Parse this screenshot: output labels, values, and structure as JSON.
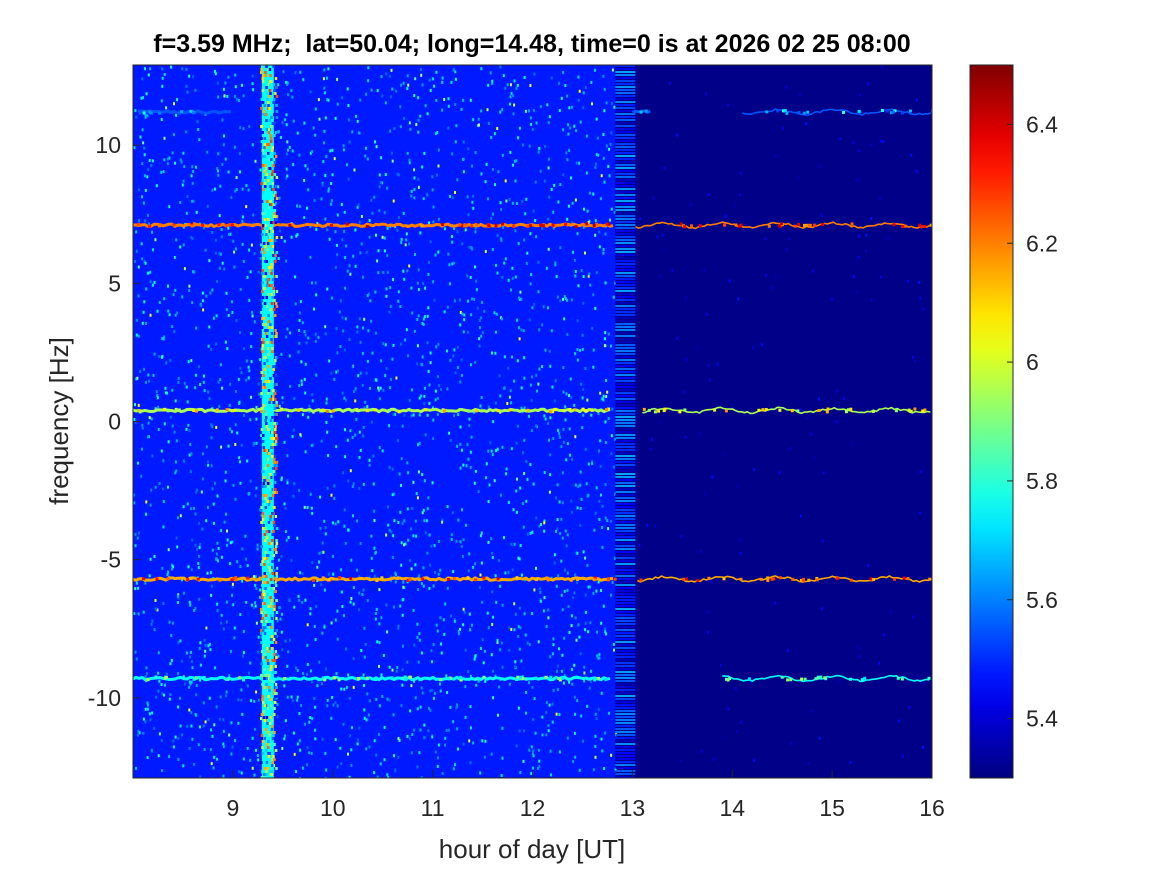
{
  "chart_data": {
    "type": "heatmap",
    "title": "f=3.59 MHz;  lat=50.04; long=14.48, time=0 is at 2026 02 25 08:00",
    "xlabel": "hour of day [UT]",
    "ylabel": "frequency [Hz]",
    "xlim": [
      8.0,
      16.0
    ],
    "ylim": [
      -12.9,
      12.9
    ],
    "x_ticks": [
      9,
      10,
      11,
      12,
      13,
      14,
      15,
      16
    ],
    "x_tick_labels": [
      "9",
      "10",
      "11",
      "12",
      "13",
      "14",
      "15",
      "16"
    ],
    "y_ticks": [
      10,
      5,
      0,
      -5,
      -10
    ],
    "y_tick_labels": [
      "10",
      "5",
      "0",
      "-5",
      "-10"
    ],
    "colorbar": {
      "colormap": "jet",
      "clim": [
        5.3,
        6.5
      ],
      "ticks": [
        6.4,
        6.2,
        6.0,
        5.8,
        5.6,
        5.4
      ],
      "tick_labels": [
        "6.4",
        "6.2",
        "6",
        "5.8",
        "5.6",
        "5.4"
      ]
    },
    "noise_regions": [
      {
        "x_range": [
          8.0,
          12.83
        ],
        "background_level": 5.48,
        "character": "strong noise"
      },
      {
        "x_range": [
          13.03,
          16.0
        ],
        "background_level": 5.31,
        "character": "quiet"
      }
    ],
    "vertical_features": [
      {
        "x": 9.35,
        "level": 6.3,
        "description": "broadband vertical stripe"
      }
    ],
    "horizontal_traces": [
      {
        "freq_hz": 11.2,
        "level": 5.8,
        "segments": [
          [
            8.05,
            9.0
          ],
          [
            13.0,
            13.2
          ],
          [
            14.1,
            16.0
          ]
        ]
      },
      {
        "freq_hz": 7.1,
        "level": 6.45,
        "segments": [
          [
            8.0,
            12.83
          ],
          [
            13.03,
            16.0
          ]
        ]
      },
      {
        "freq_hz": 0.4,
        "level": 6.2,
        "segments": [
          [
            8.0,
            12.8
          ],
          [
            13.1,
            16.0
          ]
        ]
      },
      {
        "freq_hz": -5.7,
        "level": 6.4,
        "segments": [
          [
            8.0,
            12.83
          ],
          [
            13.05,
            16.0
          ]
        ]
      },
      {
        "freq_hz": -9.3,
        "level": 6.0,
        "segments": [
          [
            8.0,
            12.8
          ],
          [
            13.9,
            16.0
          ]
        ]
      }
    ]
  }
}
